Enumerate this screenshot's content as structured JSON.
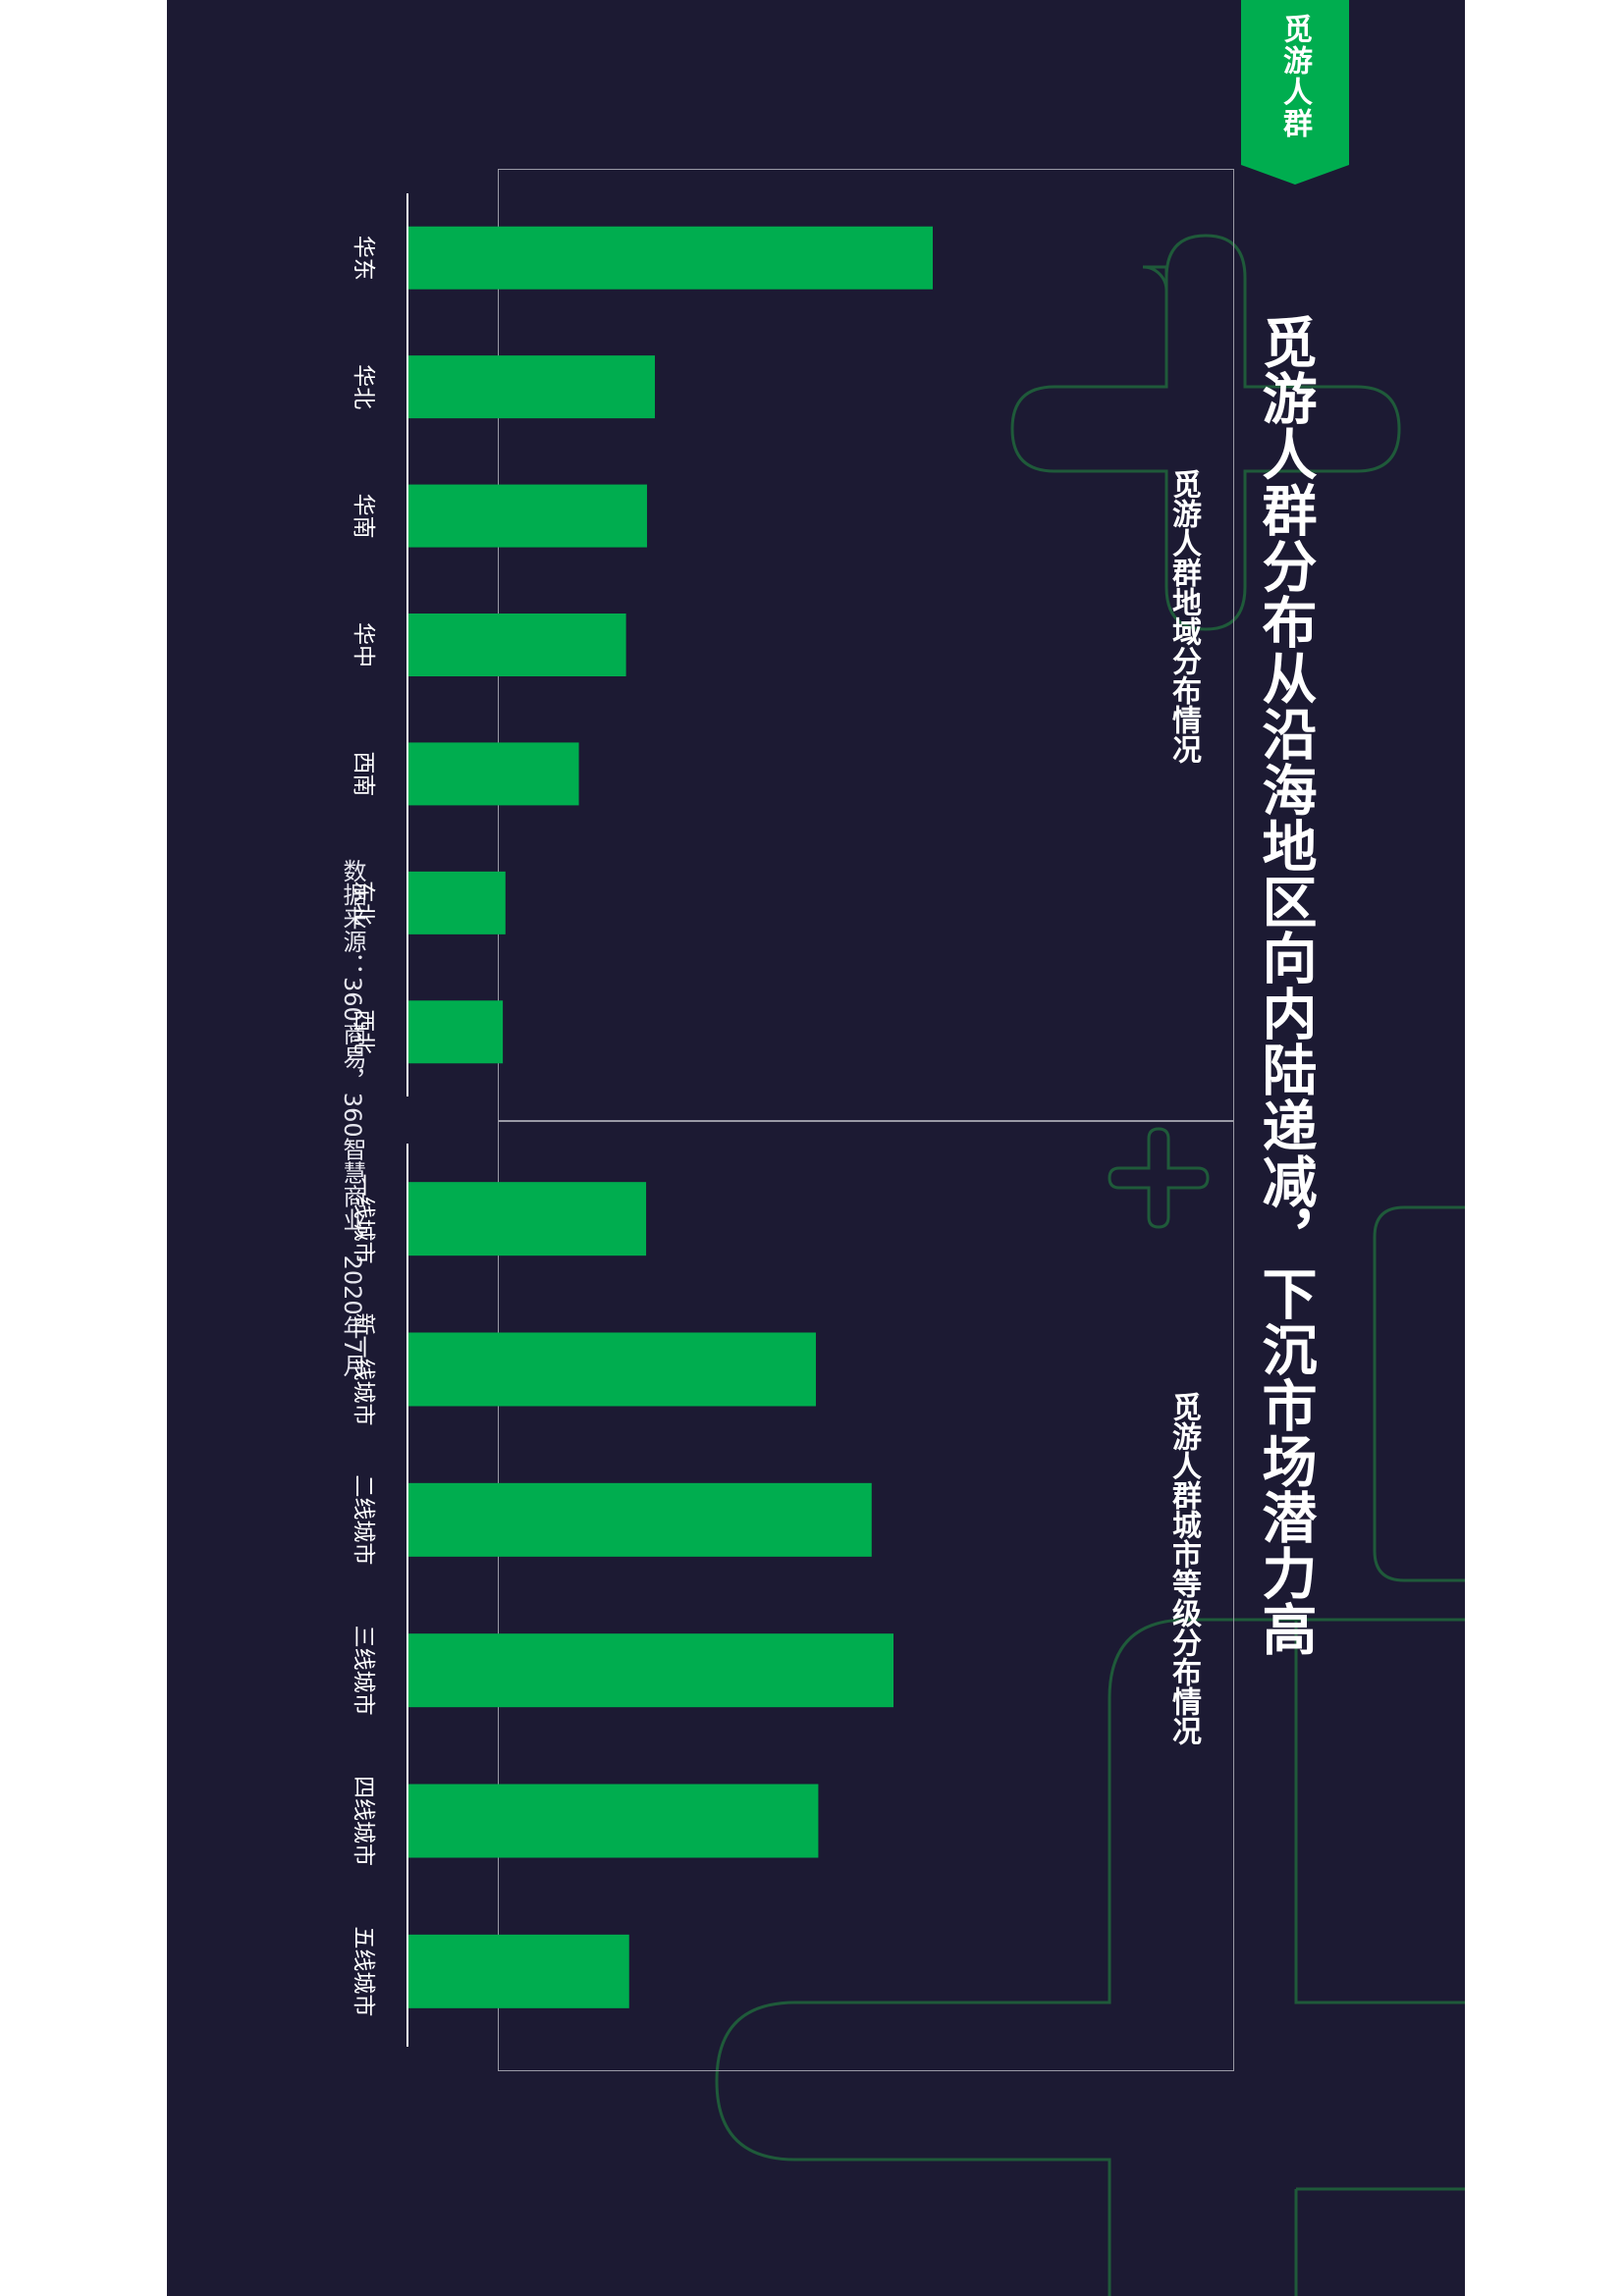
{
  "header": {
    "tag_label": "觅游人群",
    "title": "觅游人群分布从沿海地区向内陆递减，下沉市场潜力高"
  },
  "footer": {
    "source": "数据来源：360商易，360智慧商业，2020年7月"
  },
  "colors": {
    "background": "#1c1a33",
    "accent": "#00ad4f",
    "decor_line": "#1f5a3a"
  },
  "chart_data": [
    {
      "type": "bar",
      "orientation": "horizontal",
      "title": "觅游人群地域分布情况",
      "categories": [
        "华东",
        "华北",
        "华南",
        "华中",
        "西南",
        "东北",
        "西北"
      ],
      "values": [
        100,
        47,
        45.5,
        41.5,
        32.5,
        18.5,
        18
      ],
      "xlim": [
        0,
        100
      ]
    },
    {
      "type": "bar",
      "orientation": "horizontal",
      "title": "觅游人群城市等级分布情况",
      "categories": [
        "一线城市",
        "新一线城市",
        "二线城市",
        "三线城市",
        "四线城市",
        "五线城市"
      ],
      "values": [
        49,
        84,
        95.5,
        100,
        84.5,
        45.5
      ],
      "xlim": [
        0,
        100
      ]
    }
  ]
}
